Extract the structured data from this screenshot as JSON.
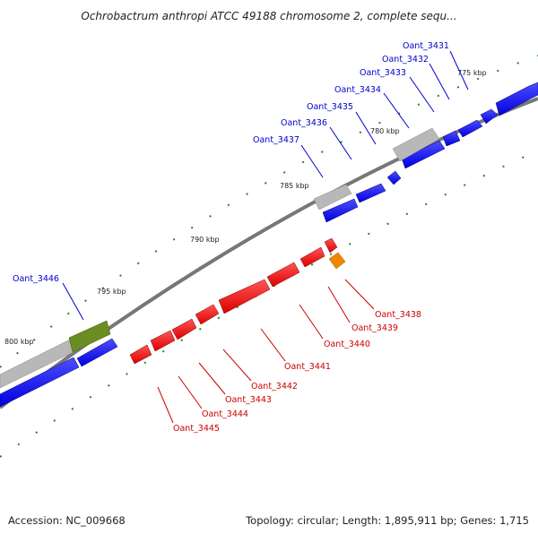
{
  "title": "Ochrobactrum anthropi ATCC 49188 chromosome 2, complete sequ...",
  "footer": {
    "accession": "Accession: NC_009668",
    "info": "Topology: circular; Length: 1,895,911 bp; Genes: 1,715"
  },
  "scale": [
    "775 kbp",
    "780 kbp",
    "785 kbp",
    "790 kbp",
    "795 kbp",
    "800 kbp"
  ],
  "colors": {
    "forward": "#0000ee",
    "reverse": "#ee0000",
    "pseudo": "#b0b0b0",
    "green": "#6b8e23",
    "orange": "#ee8800",
    "axis": "#777777",
    "tick": "#228822"
  },
  "forward_labels": [
    "Oant_3431",
    "Oant_3432",
    "Oant_3433",
    "Oant_3434",
    "Oant_3435",
    "Oant_3436",
    "Oant_3437",
    "Oant_3446"
  ],
  "reverse_labels": [
    "Oant_3438",
    "Oant_3439",
    "Oant_3440",
    "Oant_3441",
    "Oant_3442",
    "Oant_3443",
    "Oant_3444",
    "Oant_3445"
  ]
}
